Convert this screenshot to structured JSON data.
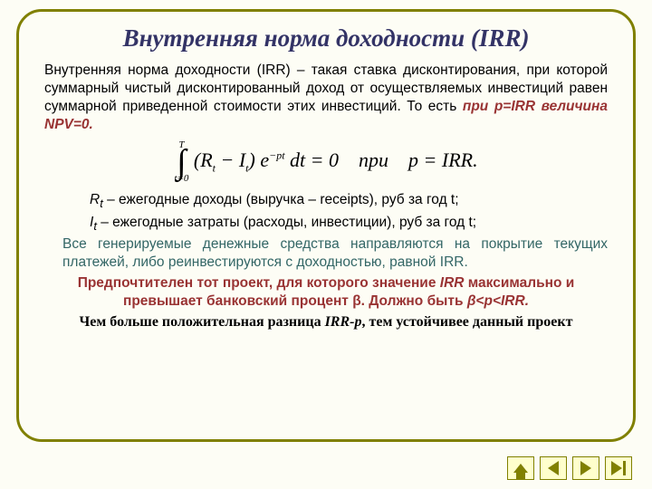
{
  "style": {
    "frame_border_color": "#808000",
    "title_color": "#333366",
    "cond_color": "#993333",
    "note_color": "#336666",
    "pref_color": "#993333",
    "nav_bg": "#ffffcc",
    "nav_border": "#808000",
    "nav_icon": "#808000"
  },
  "title": "Внутренняя норма доходности (IRR)",
  "defn_full": "Внутренняя норма доходности (IRR) – такая ставка дисконтирования, при которой суммарный чистый дисконтированный доход от осуществляемых инвестиций равен суммарной приведенной стоимости этих инвестиций. То есть ",
  "defn_cond": "при p=IRR величина NPV=0.",
  "formula": {
    "upper": "T",
    "lower": "t=0",
    "body_left": "(R",
    "sub1": "t",
    "mid": " − I",
    "sub2": "t",
    "body_right": ") e",
    "exp": "−pt",
    "after": " dt = 0",
    "when": "при",
    "eq": "p = IRR."
  },
  "legend": {
    "r": "R",
    "r_sub": "t",
    "r_text": " – ежегодные доходы (выручка – receipts), руб за год t;",
    "i": "I",
    "i_sub": "t",
    "i_text": " – ежегодные затраты (расходы, инвестиции), руб за год t;"
  },
  "note": "Все генерируемые денежные средства направляются на покрытие текущих платежей, либо реинвестируются с доходностью, равной IRR.",
  "pref_a": "Предпочтителен тот проект, для которого значение ",
  "pref_irr": "IRR",
  "pref_b": " максимально и превышает  банковский процент β. Должно быть ",
  "pref_ineq": "β<p<IRR.",
  "final_a": "Чем больше положительная разница ",
  "final_term": "IRR-p",
  "final_b": ", тем устойчивее данный проект"
}
